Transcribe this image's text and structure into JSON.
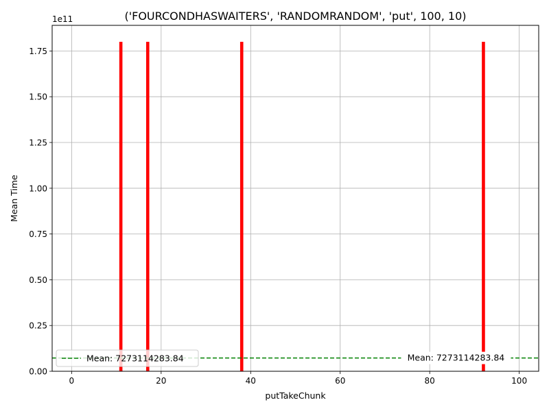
{
  "chart_data": {
    "type": "bar",
    "title": "('FOURCONDHASWAITERS', 'RANDOMRANDOM', 'put', 100, 10)",
    "xlabel": "putTakeChunk",
    "ylabel": "Mean Time",
    "y_offset_text": "1e11",
    "xlim": [
      -4.35,
      104.35
    ],
    "ylim": [
      0,
      189000000000.0
    ],
    "x_ticks": [
      0,
      20,
      40,
      60,
      80,
      100
    ],
    "x_tick_labels": [
      "0",
      "20",
      "40",
      "60",
      "80",
      "100"
    ],
    "y_ticks": [
      0,
      25000000000.0,
      50000000000.0,
      75000000000.0,
      100000000000.0,
      125000000000.0,
      150000000000.0,
      175000000000.0
    ],
    "y_tick_labels": [
      "0.00",
      "0.25",
      "0.50",
      "0.75",
      "1.00",
      "1.25",
      "1.50",
      "1.75"
    ],
    "grid": true,
    "bar_color": "#ff0000",
    "bars": [
      {
        "x": 11,
        "value": 180000000000.0
      },
      {
        "x": 17,
        "value": 180000000000.0
      },
      {
        "x": 38,
        "value": 180000000000.0
      },
      {
        "x": 92,
        "value": 180000000000.0
      }
    ],
    "mean_line": {
      "value": 7273114283.84,
      "color": "#008000",
      "style": "dashed",
      "label": "Mean: 7273114283.84",
      "annotation": "Mean: 7273114283.84",
      "annotation_x": 92
    },
    "legend": {
      "placement": "lower-left",
      "entries": [
        "Mean: 7273114283.84"
      ]
    }
  }
}
